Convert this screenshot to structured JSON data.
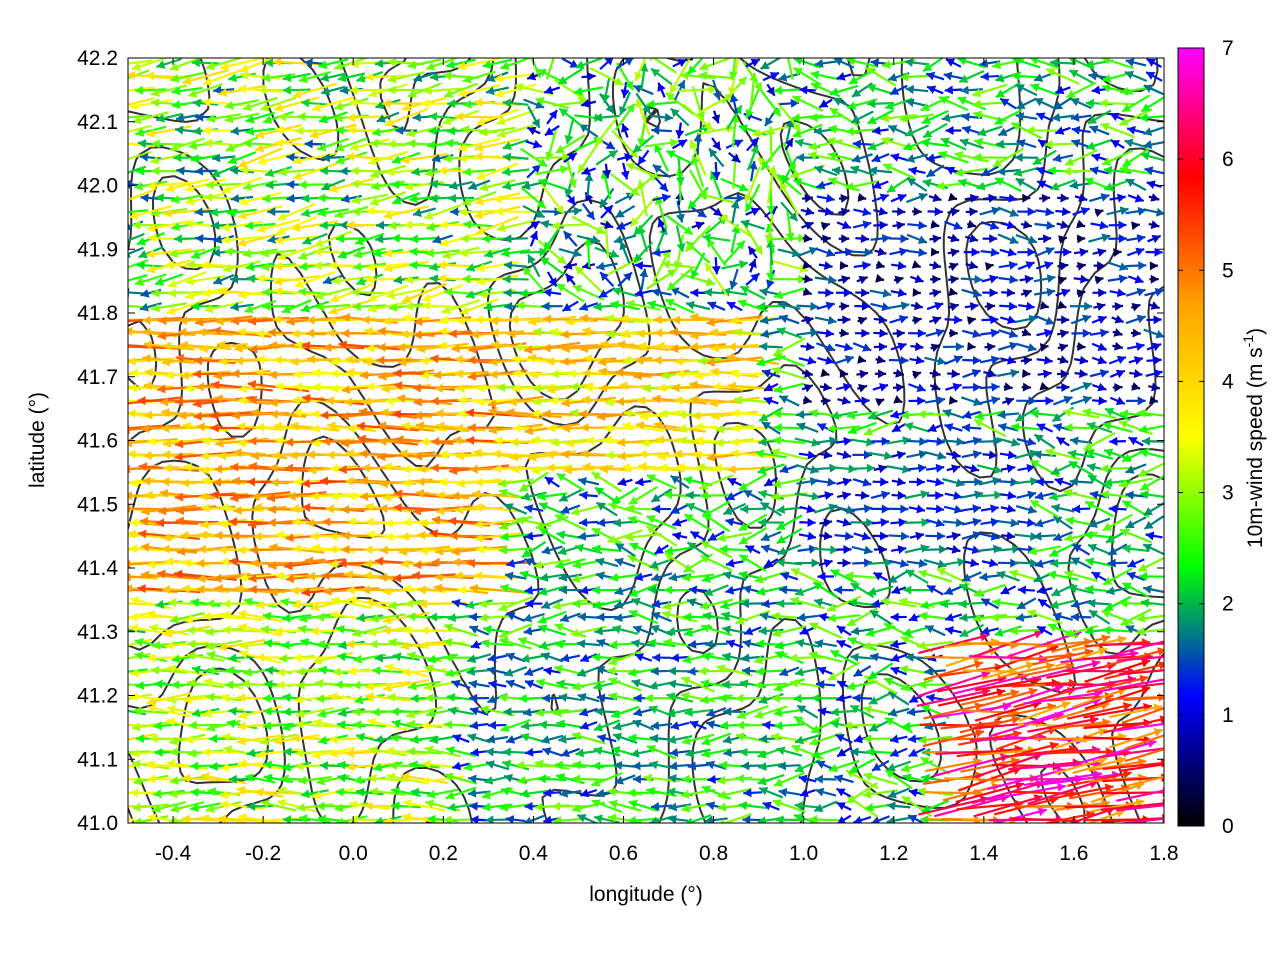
{
  "chart_data": {
    "type": "vector-field",
    "title": "",
    "xlabel": "longitude (°)",
    "ylabel": "latitude (°)",
    "xlim": [
      -0.5,
      1.8
    ],
    "ylim": [
      41.0,
      42.2
    ],
    "xticks": [
      -0.4,
      -0.2,
      0.0,
      0.2,
      0.4,
      0.6,
      0.8,
      1.0,
      1.2,
      1.4,
      1.6,
      1.8
    ],
    "xtick_labels": [
      "-0.4",
      "-0.2",
      "0.0",
      "0.2",
      "0.4",
      "0.6",
      "0.8",
      "1.0",
      "1.2",
      "1.4",
      "1.6",
      "1.8"
    ],
    "yticks": [
      41.0,
      41.1,
      41.2,
      41.3,
      41.4,
      41.5,
      41.6,
      41.7,
      41.8,
      41.9,
      42.0,
      42.1,
      42.2
    ],
    "ytick_labels": [
      "41.0",
      "41.1",
      "41.2",
      "41.3",
      "41.4",
      "41.5",
      "41.6",
      "41.7",
      "41.8",
      "41.9",
      "42.0",
      "42.1",
      "42.2"
    ],
    "grid": true,
    "colorbar": {
      "label": "10m-wind speed (m s",
      "label_sup": "-1",
      "label_close": ")",
      "range": [
        0,
        7
      ],
      "ticks": [
        0,
        1,
        2,
        3,
        4,
        5,
        6,
        7
      ],
      "tick_labels": [
        "0",
        "1",
        "2",
        "3",
        "4",
        "5",
        "6",
        "7"
      ],
      "colors": [
        "#000000",
        "#0000ff",
        "#00ff00",
        "#ffff00",
        "#ffa500",
        "#ff0000",
        "#ff00ff"
      ]
    },
    "series": [
      {
        "type": "wind-vectors",
        "regions": [
          {
            "lon_range": [
              -0.5,
              0.35
            ],
            "lat_range": [
              41.35,
              41.8
            ],
            "dir": "westward",
            "speed": [
              3.5,
              5.5
            ]
          },
          {
            "lon_range": [
              0.3,
              0.9
            ],
            "lat_range": [
              41.55,
              41.8
            ],
            "dir": "westward",
            "speed": [
              3.0,
              4.8
            ]
          },
          {
            "lon_range": [
              0.2,
              1.0
            ],
            "lat_range": [
              41.05,
              41.4
            ],
            "dir": "west",
            "speed": [
              1.5,
              3.0
            ]
          },
          {
            "lon_range": [
              1.0,
              1.8
            ],
            "lat_range": [
              41.65,
              42.0
            ],
            "dir": "east",
            "speed": [
              0.3,
              1.5
            ]
          },
          {
            "lon_range": [
              1.3,
              1.8
            ],
            "lat_range": [
              41.0,
              41.3
            ],
            "dir": "eastward",
            "speed": [
              4.5,
              7.0
            ]
          },
          {
            "lon_range": [
              0.4,
              1.0
            ],
            "lat_range": [
              41.85,
              42.2
            ],
            "dir": "mixed",
            "speed": [
              0.8,
              3.0
            ]
          },
          {
            "lon_range": [
              1.0,
              1.5
            ],
            "lat_range": [
              41.4,
              41.6
            ],
            "dir": "east",
            "speed": [
              0.8,
              2.0
            ]
          }
        ]
      },
      {
        "type": "terrain-contours",
        "color": "#333333"
      }
    ]
  }
}
